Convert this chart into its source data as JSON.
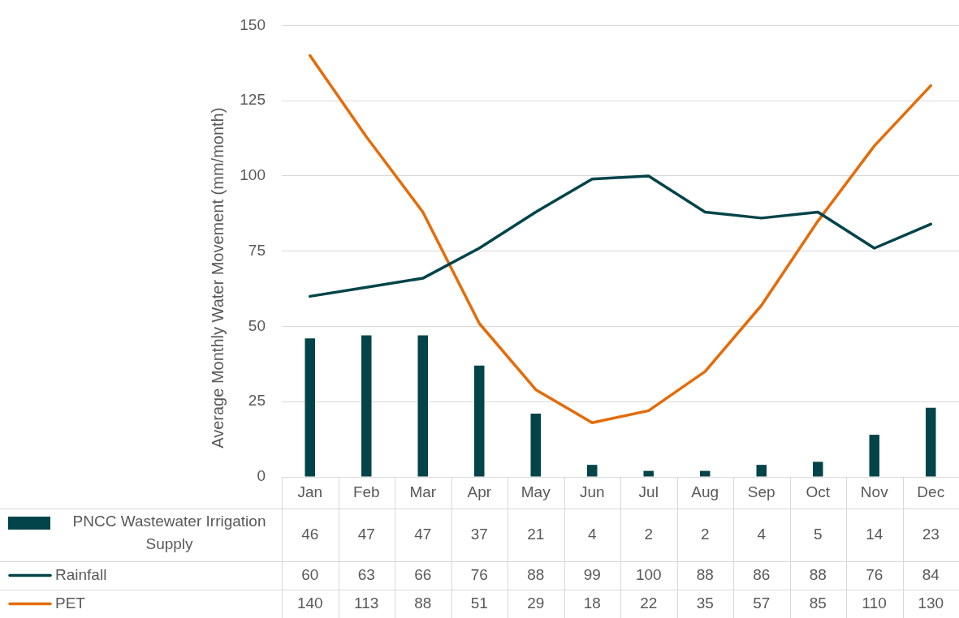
{
  "chart_data": {
    "type": "bar",
    "ylabel": "Average Monthly Water Movement (mm/month)",
    "categories": [
      "Jan",
      "Feb",
      "Mar",
      "Apr",
      "May",
      "Jun",
      "Jul",
      "Aug",
      "Sep",
      "Oct",
      "Nov",
      "Dec"
    ],
    "series": [
      {
        "name": "PNCC Wastewater Irrigation Supply",
        "color": "#024449",
        "values": [
          46,
          47,
          47,
          37,
          21,
          4,
          2,
          2,
          4,
          5,
          14,
          23
        ]
      },
      {
        "name": "Rainfall",
        "type": "line",
        "color": "#024449",
        "values": [
          60,
          63,
          66,
          76,
          88,
          99,
          100,
          88,
          86,
          88,
          76,
          84
        ]
      },
      {
        "name": "PET",
        "type": "line",
        "color": "#e46c0a",
        "values": [
          140,
          113,
          88,
          51,
          29,
          18,
          22,
          35,
          57,
          85,
          110,
          130
        ]
      }
    ],
    "ylim": [
      0,
      150
    ],
    "yticks": [
      0,
      25,
      50,
      75,
      100,
      125,
      150
    ],
    "grid": "y",
    "legend": "bottom",
    "marker": "none",
    "data_labels": true
  }
}
